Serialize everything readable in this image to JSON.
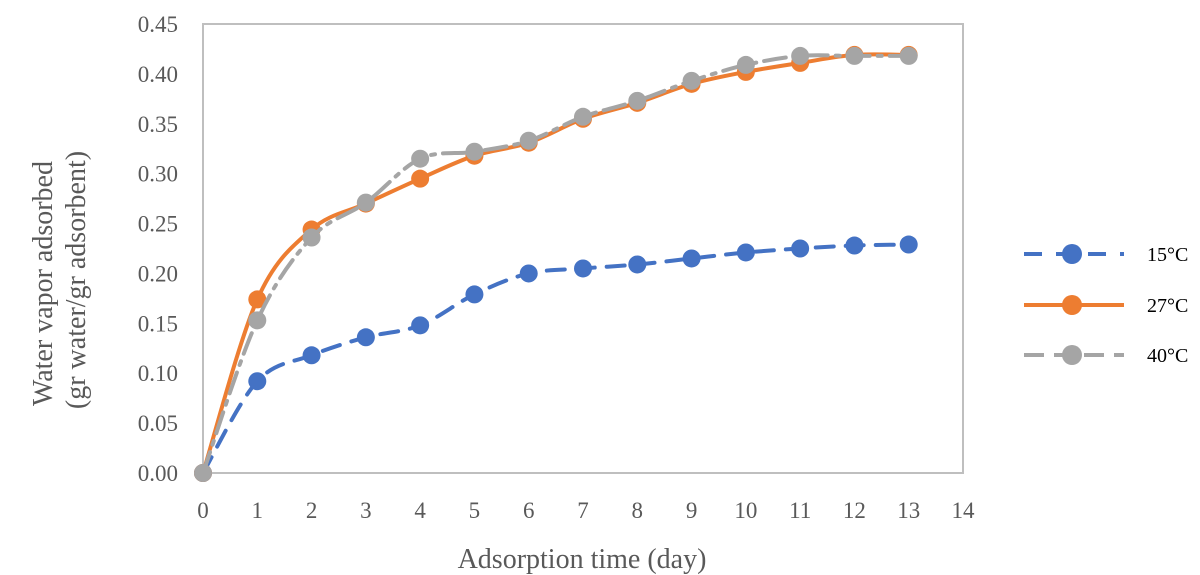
{
  "chart_data": {
    "type": "line",
    "xlabel": "Adsorption time  (day)",
    "ylabel_lines": [
      "Water vapor adsorbed",
      "(gr  water/gr  adsorbent)"
    ],
    "xlim": [
      0,
      14
    ],
    "ylim": [
      0,
      0.45
    ],
    "xticks": [
      "0",
      "1",
      "2",
      "3",
      "4",
      "5",
      "6",
      "7",
      "8",
      "9",
      "10",
      "11",
      "12",
      "13",
      "14"
    ],
    "yticks": [
      "0.00",
      "0.05",
      "0.10",
      "0.15",
      "0.20",
      "0.25",
      "0.30",
      "0.35",
      "0.40",
      "0.45"
    ],
    "grid": false,
    "legend_position": "right",
    "x": [
      0,
      1,
      2,
      3,
      4,
      5,
      6,
      7,
      8,
      9,
      10,
      11,
      12,
      13
    ],
    "series": [
      {
        "name": "15°C",
        "color": "#4472C4",
        "line_style": "dashed",
        "values": [
          0.0,
          0.092,
          0.118,
          0.136,
          0.148,
          0.179,
          0.2,
          0.205,
          0.209,
          0.215,
          0.221,
          0.225,
          0.228,
          0.229
        ]
      },
      {
        "name": "27°C",
        "color": "#ED7D31",
        "line_style": "solid",
        "values": [
          0.0,
          0.174,
          0.244,
          0.27,
          0.295,
          0.318,
          0.331,
          0.355,
          0.371,
          0.39,
          0.402,
          0.411,
          0.419,
          0.419
        ]
      },
      {
        "name": "40°C",
        "color": "#A5A5A5",
        "line_style": "dash-dot",
        "values": [
          0.0,
          0.153,
          0.236,
          0.271,
          0.315,
          0.322,
          0.333,
          0.357,
          0.373,
          0.393,
          0.409,
          0.418,
          0.418,
          0.418
        ]
      }
    ]
  }
}
